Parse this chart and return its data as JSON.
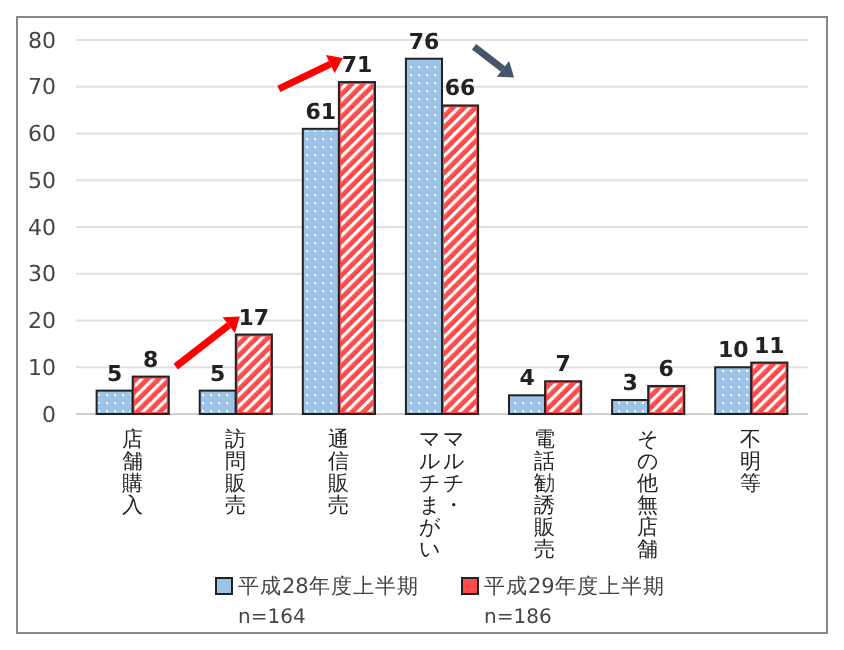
{
  "chart_data": {
    "type": "bar",
    "categories": [
      "店舗購入",
      "訪問販売",
      "通信販売",
      "マルチ・マルチまがい",
      "電話勧誘販売",
      "その他無店舗",
      "不明等"
    ],
    "series": [
      {
        "name": "平成28年度上半期",
        "color": "#9dc3e6",
        "values": [
          5,
          5,
          61,
          76,
          4,
          3,
          10
        ]
      },
      {
        "name": "平成29年度上半期",
        "color": "#ff4b4b",
        "values": [
          8,
          17,
          71,
          66,
          7,
          6,
          11
        ]
      }
    ],
    "ylim": [
      0,
      80
    ],
    "yticks": [
      0,
      10,
      20,
      30,
      40,
      50,
      60,
      70,
      80
    ],
    "grid": "y",
    "legend": "bottom",
    "data_labels": true,
    "annotations": [
      "n=164",
      "n=186"
    ]
  }
}
